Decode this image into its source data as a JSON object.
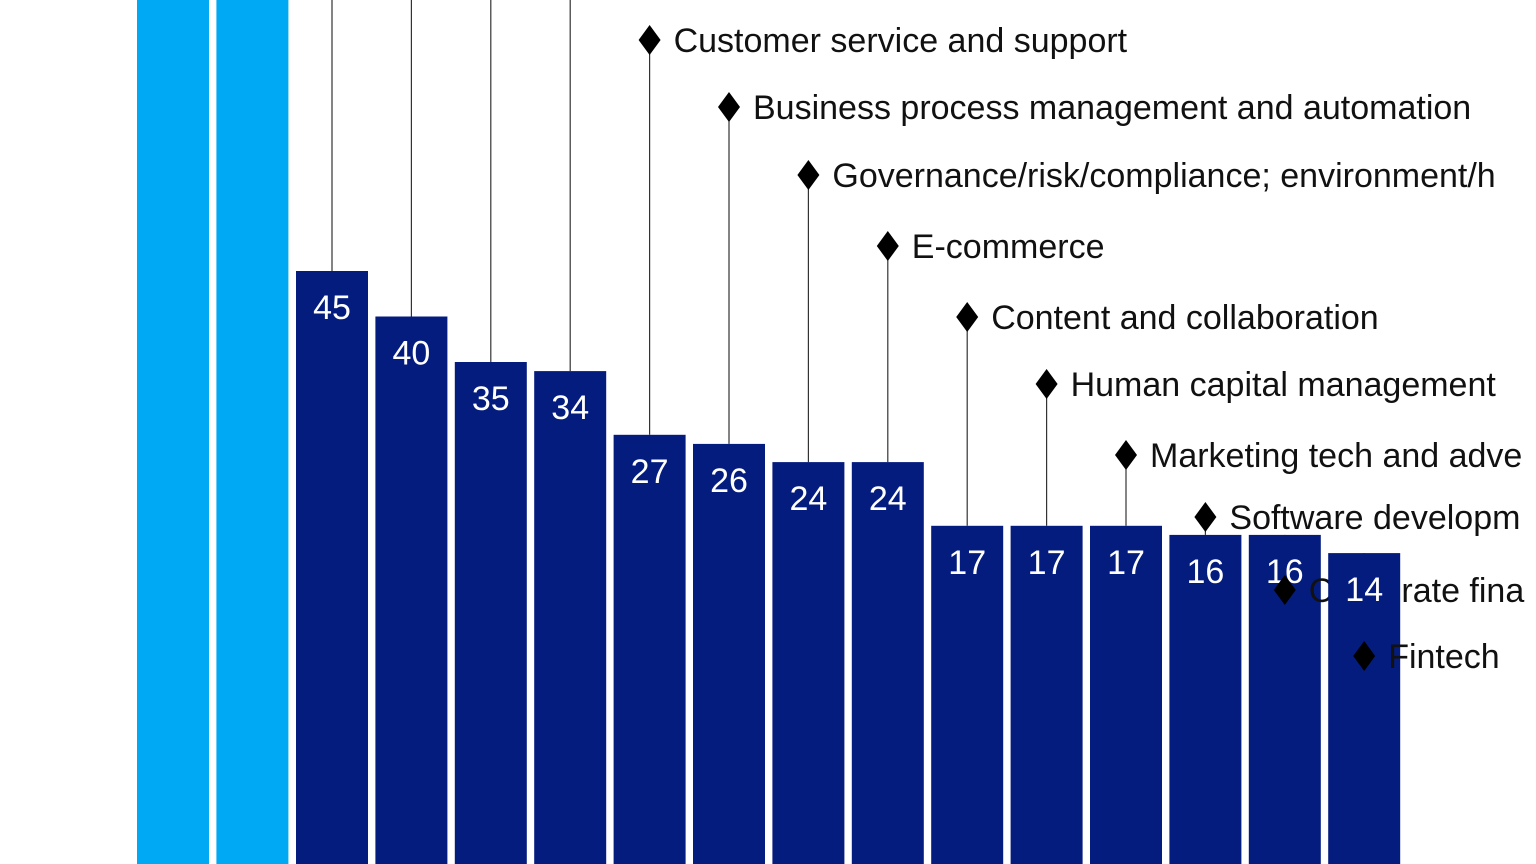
{
  "chart_data": {
    "type": "bar",
    "colors": {
      "highlight_bar": "#00A9F4",
      "bar": "#051C7F",
      "leader_line": "#333333",
      "marker": "#000000"
    },
    "highlight_bars": 2,
    "categories": [
      "",
      "",
      "",
      "",
      "Customer service and support",
      "Business process management and automation",
      "Governance/risk/compliance; environment/h",
      "E-commerce",
      "Content and collaboration",
      "Human capital management",
      "Marketing tech and adve",
      "Software developm",
      "Corporate fina",
      "Fintech"
    ],
    "values": [
      45,
      40,
      35,
      34,
      27,
      26,
      24,
      24,
      17,
      17,
      17,
      16,
      16,
      14
    ],
    "marker_glyph": "♦"
  }
}
